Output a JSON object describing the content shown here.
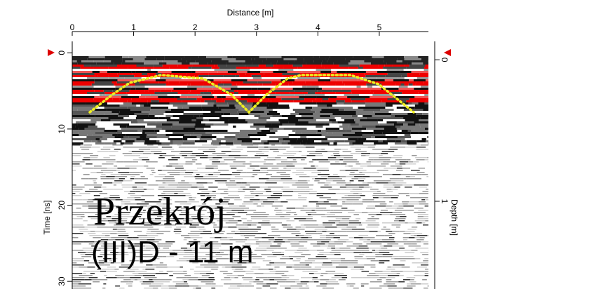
{
  "chart_data": {
    "type": "radargram",
    "x_label": "Distance [m]",
    "y_label": "Time [ns]",
    "y2_label": "Depth [m]",
    "xlim": [
      0,
      5.8
    ],
    "xticks": [
      0,
      1,
      2,
      3,
      4,
      5
    ],
    "ylim": [
      -1.5,
      31
    ],
    "yticks": [
      0,
      10,
      20,
      30
    ],
    "y2lim": [
      -0.13,
      1.62
    ],
    "y2ticks": [
      0,
      1
    ],
    "annotations": [
      "Przekrój",
      "(III)D - 11 m"
    ]
  }
}
